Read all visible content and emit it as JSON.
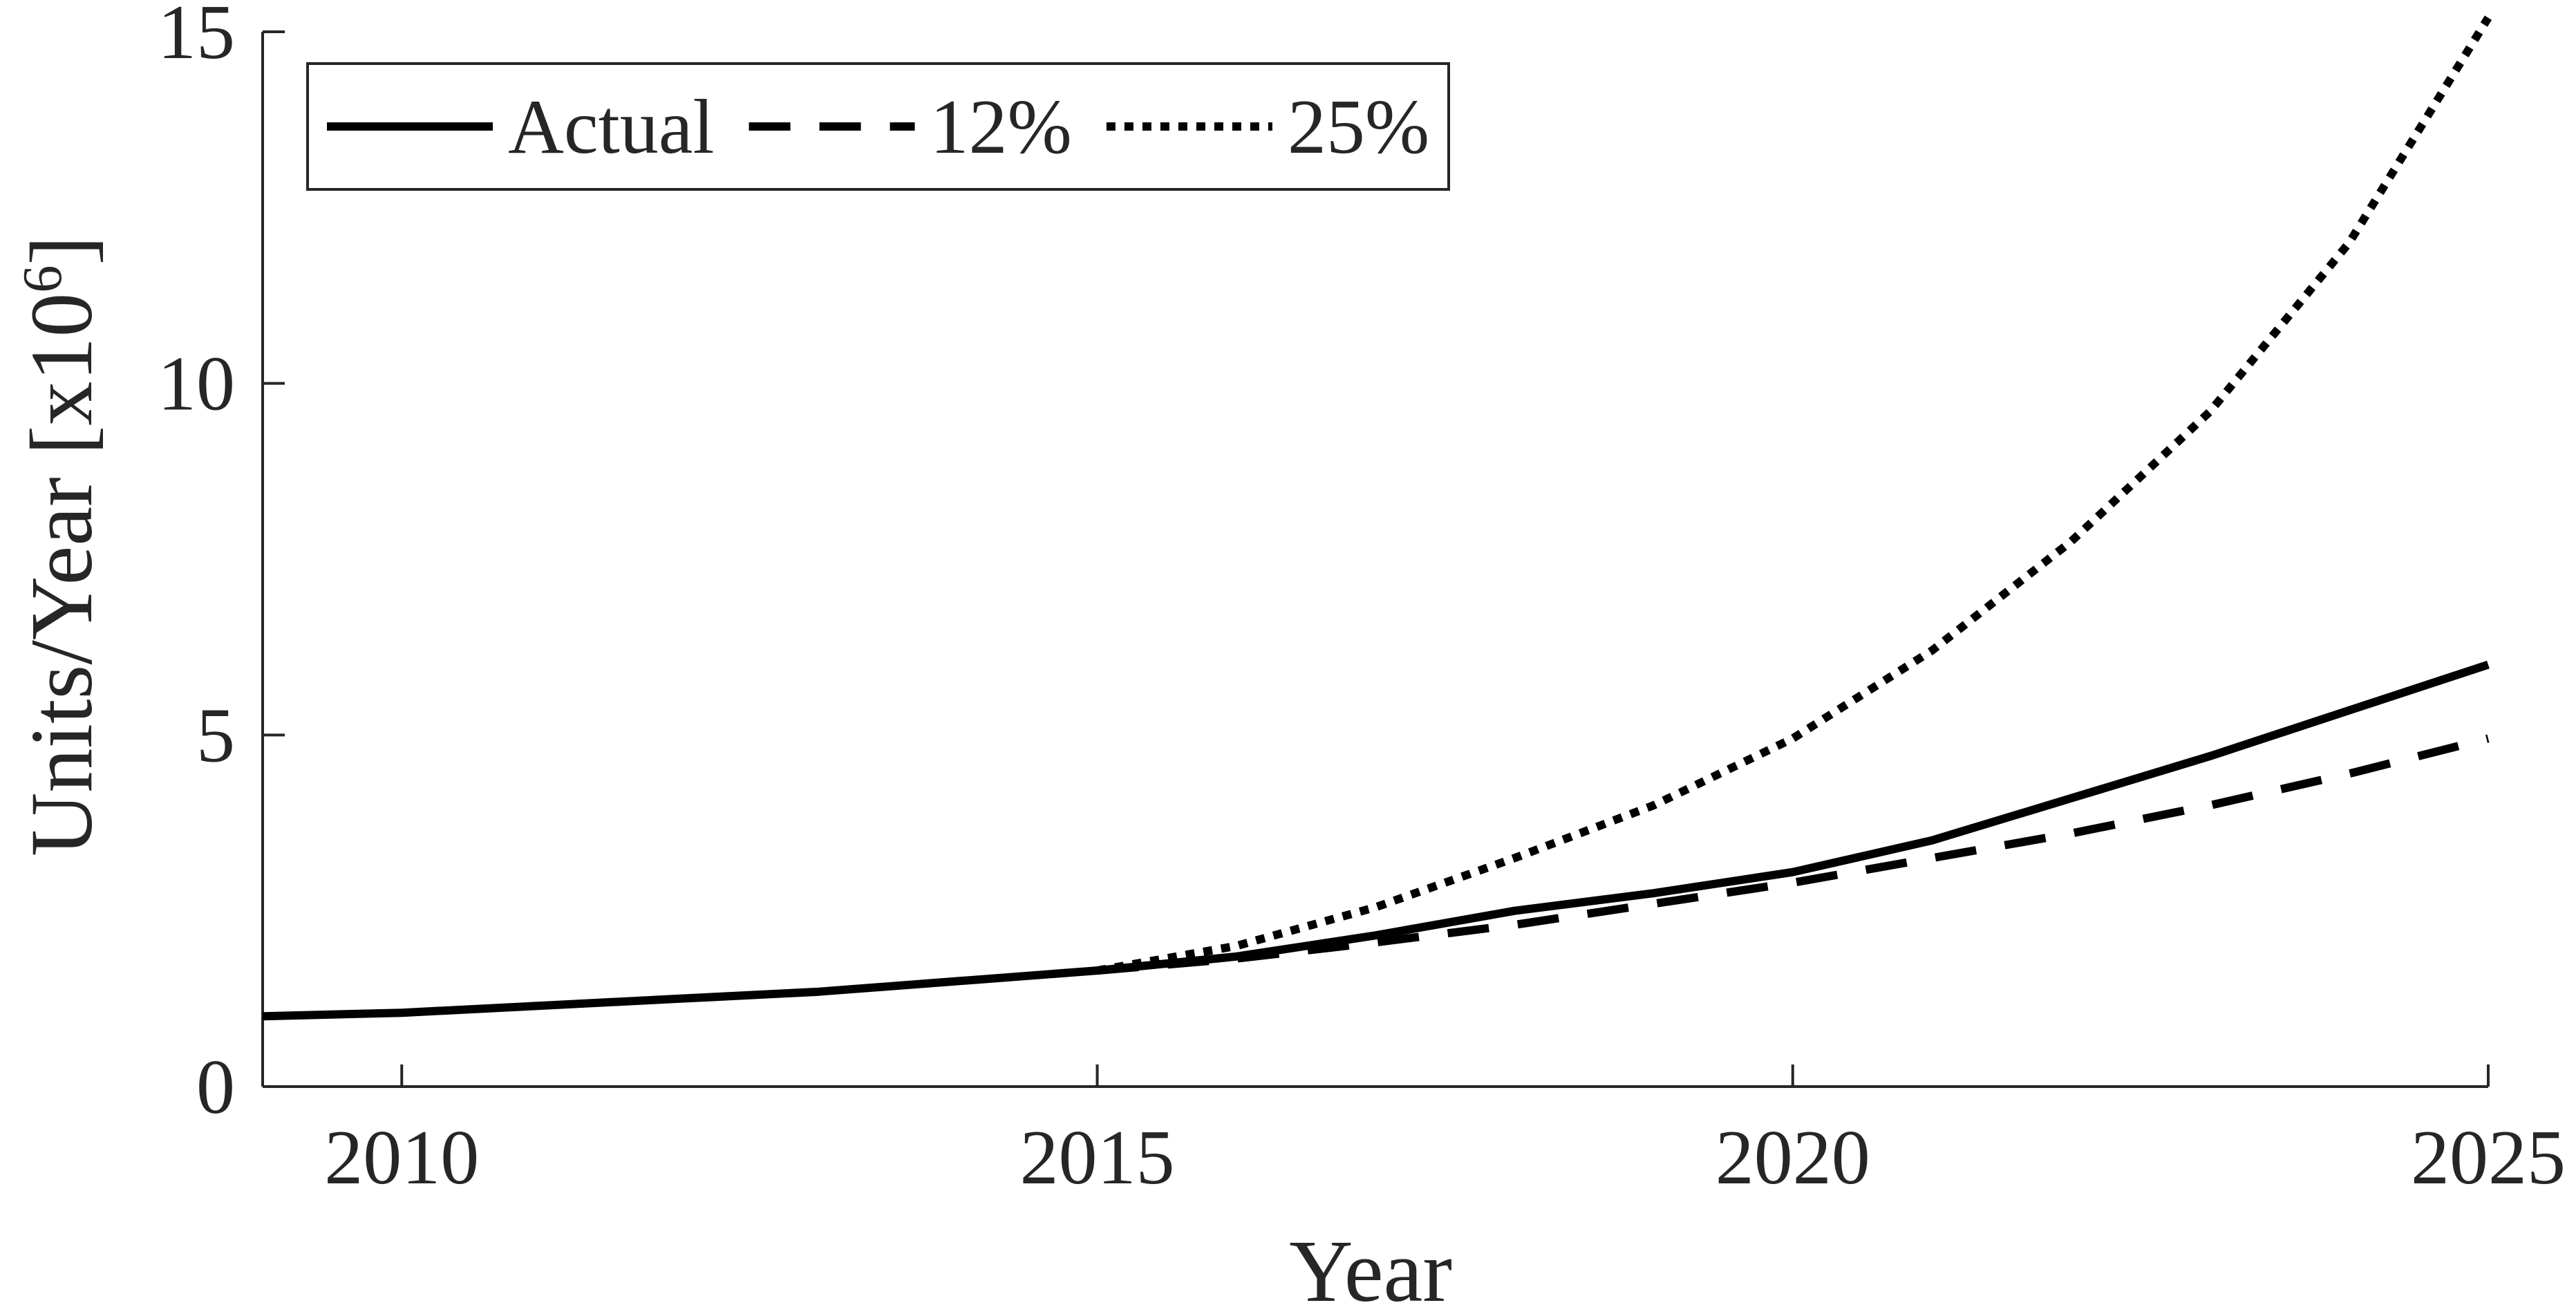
{
  "chart_data": {
    "type": "line",
    "xlabel": "Year",
    "ylabel": "Units/Year [x10",
    "ylabel_superscript": "6",
    "ylabel_suffix": "]",
    "xlim": [
      2009,
      2025
    ],
    "ylim": [
      0,
      15
    ],
    "xticks": [
      2010,
      2015,
      2020,
      2025
    ],
    "yticks": [
      0,
      5,
      10,
      15
    ],
    "grid": false,
    "legend_position": "top-left",
    "series": [
      {
        "name": "Actual",
        "style": "solid",
        "color": "#000000",
        "x": [
          2009,
          2010,
          2011,
          2012,
          2013,
          2014,
          2015,
          2016,
          2017,
          2018,
          2019,
          2020,
          2021,
          2022,
          2023,
          2024,
          2025
        ],
        "y": [
          1.0,
          1.05,
          1.15,
          1.25,
          1.35,
          1.5,
          1.65,
          1.85,
          2.15,
          2.5,
          2.75,
          3.05,
          3.5,
          4.1,
          4.7,
          5.35,
          6.0
        ]
      },
      {
        "name": "12%",
        "style": "dashed",
        "color": "#000000",
        "x": [
          2015,
          2016,
          2017,
          2018,
          2019,
          2020,
          2021,
          2022,
          2023,
          2024,
          2025
        ],
        "y": [
          1.65,
          1.82,
          2.05,
          2.3,
          2.6,
          2.9,
          3.25,
          3.6,
          4.0,
          4.45,
          4.95
        ]
      },
      {
        "name": "25%",
        "style": "dotted",
        "color": "#000000",
        "x": [
          2015,
          2016,
          2017,
          2018,
          2019,
          2020,
          2021,
          2022,
          2023,
          2024,
          2025
        ],
        "y": [
          1.65,
          2.0,
          2.55,
          3.25,
          4.0,
          4.95,
          6.2,
          7.75,
          9.6,
          12.0,
          15.2
        ]
      }
    ]
  }
}
